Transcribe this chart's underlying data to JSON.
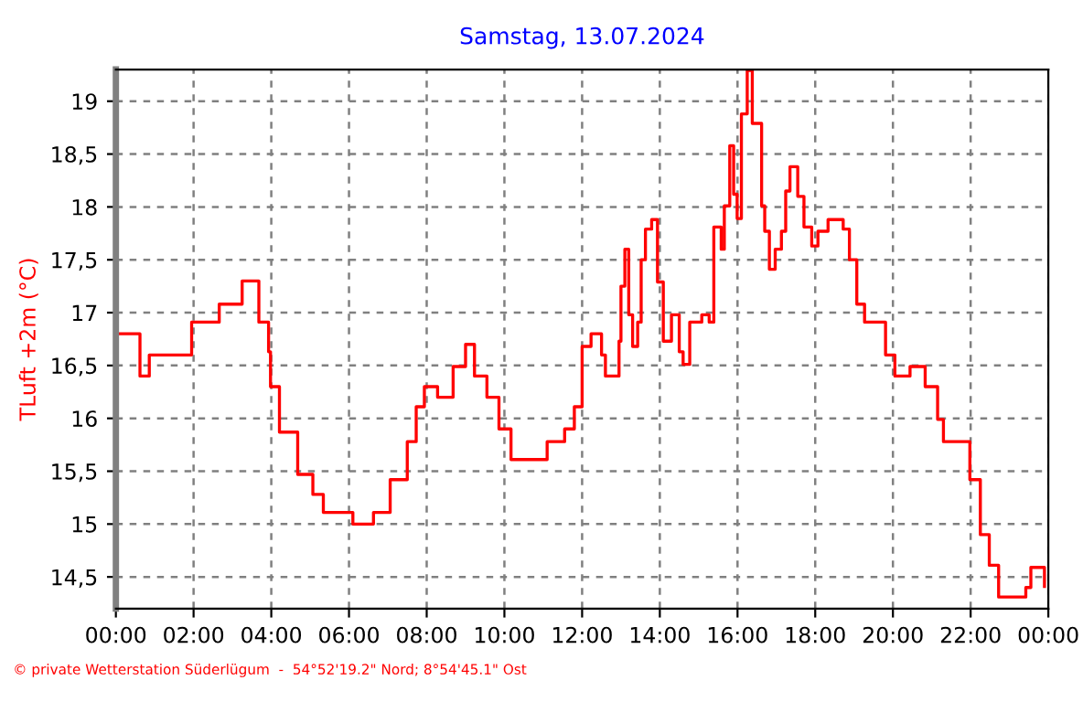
{
  "chart_data": {
    "type": "step",
    "title": "Samstag, 13.07.2024",
    "ylabel": "TLuft +2m (°C)",
    "annotations": [
      "© private Wetterstation Süderlügum  -  54°52'19.2\" Nord; 8°54'45.1\" Ost"
    ],
    "series": [
      {
        "color": "#ff0000",
        "x": [
          0,
          0.62,
          0.86,
          1.95,
          2.66,
          3.25,
          3.68,
          3.93,
          3.98,
          4.21,
          4.68,
          5.07,
          5.34,
          6.1,
          6.63,
          7.06,
          7.5,
          7.73,
          7.94,
          8.28,
          8.68,
          9.0,
          9.23,
          9.55,
          9.86,
          10.17,
          10.8,
          11.1,
          11.55,
          11.8,
          12.0,
          12.23,
          12.5,
          12.6,
          12.8,
          12.95,
          13.0,
          13.1,
          13.2,
          13.3,
          13.43,
          13.52,
          13.63,
          13.79,
          13.94,
          14.09,
          14.3,
          14.5,
          14.6,
          14.77,
          15.08,
          15.27,
          15.39,
          15.58,
          15.66,
          15.8,
          15.9,
          15.99,
          16.1,
          16.25,
          16.38,
          16.62,
          16.7,
          16.82,
          16.97,
          17.13,
          17.24,
          17.35,
          17.55,
          17.71,
          17.91,
          18.07,
          18.33,
          18.72,
          18.88,
          19.07,
          19.27,
          19.66,
          19.81,
          20.05,
          20.44,
          20.83,
          21.15,
          21.3,
          21.77,
          21.98,
          22.25,
          22.48,
          22.72,
          23.11,
          23.42,
          23.55,
          23.82,
          23.9
        ],
        "values": [
          16.8,
          16.4,
          16.6,
          16.91,
          17.08,
          17.3,
          16.91,
          16.63,
          16.3,
          15.87,
          15.47,
          15.28,
          15.11,
          15.0,
          15.11,
          15.42,
          15.78,
          16.11,
          16.3,
          16.2,
          16.49,
          16.7,
          16.4,
          16.2,
          15.9,
          15.61,
          15.61,
          15.78,
          15.9,
          16.11,
          16.68,
          16.8,
          16.6,
          16.4,
          16.4,
          16.73,
          17.25,
          17.6,
          16.98,
          16.68,
          16.91,
          17.5,
          17.79,
          17.88,
          17.29,
          16.73,
          16.98,
          16.63,
          16.51,
          16.91,
          16.98,
          16.91,
          17.81,
          17.6,
          18.01,
          18.58,
          18.12,
          17.89,
          18.88,
          19.29,
          18.79,
          18.01,
          17.77,
          17.41,
          17.6,
          17.77,
          18.15,
          18.38,
          18.1,
          17.81,
          17.63,
          17.77,
          17.88,
          17.79,
          17.5,
          17.08,
          16.91,
          16.91,
          16.6,
          16.4,
          16.49,
          16.3,
          15.99,
          15.78,
          15.78,
          15.42,
          14.9,
          14.61,
          14.31,
          14.31,
          14.4,
          14.59,
          14.59,
          14.41
        ]
      }
    ],
    "xlim": [
      0,
      24
    ],
    "xticks": [
      {
        "value": 0,
        "label": "00:00"
      },
      {
        "value": 2,
        "label": "02:00"
      },
      {
        "value": 4,
        "label": "04:00"
      },
      {
        "value": 6,
        "label": "06:00"
      },
      {
        "value": 8,
        "label": "08:00"
      },
      {
        "value": 10,
        "label": "10:00"
      },
      {
        "value": 12,
        "label": "12:00"
      },
      {
        "value": 14,
        "label": "14:00"
      },
      {
        "value": 16,
        "label": "16:00"
      },
      {
        "value": 18,
        "label": "18:00"
      },
      {
        "value": 20,
        "label": "20:00"
      },
      {
        "value": 22,
        "label": "22:00"
      },
      {
        "value": 24,
        "label": "00:00"
      }
    ],
    "ylim": [
      14.2,
      19.3
    ],
    "yticks": [
      {
        "value": 14.5,
        "label": "14,5"
      },
      15,
      {
        "value": 15.5,
        "label": "15,5"
      },
      16,
      {
        "value": 16.5,
        "label": "16,5"
      },
      17,
      {
        "value": 17.5,
        "label": "17,5"
      },
      18,
      {
        "value": 18.5,
        "label": "18,5"
      },
      19
    ],
    "grid": true,
    "line_style": "solid",
    "marker": "none"
  }
}
